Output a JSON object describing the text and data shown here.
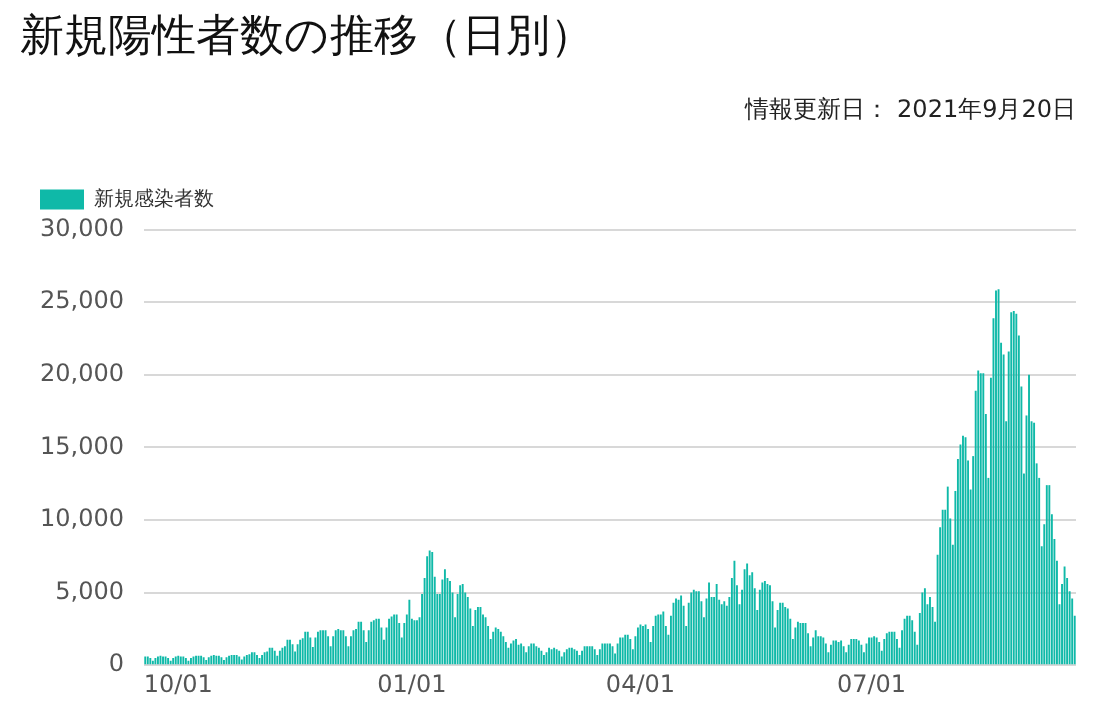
{
  "chart_data": {
    "type": "bar",
    "title": "新規陽性者数の推移（日別）",
    "subtitle": "情報更新日： 2021年9月20日",
    "categories": [
      null,
      null,
      null,
      null,
      null,
      null,
      null,
      null,
      null,
      null,
      null,
      null,
      null,
      "10/01",
      null,
      null,
      null,
      null,
      null,
      null,
      null,
      null,
      null,
      null,
      null,
      null,
      null,
      null,
      null,
      null,
      null,
      null,
      null,
      null,
      null,
      null,
      null,
      null,
      null,
      null,
      null,
      null,
      null,
      null,
      null,
      null,
      null,
      null,
      null,
      null,
      null,
      null,
      null,
      null,
      null,
      null,
      null,
      null,
      null,
      null,
      null,
      null,
      null,
      null,
      null,
      null,
      null,
      null,
      null,
      null,
      null,
      null,
      null,
      null,
      null,
      null,
      null,
      null,
      null,
      null,
      null,
      null,
      null,
      null,
      null,
      null,
      null,
      null,
      null,
      null,
      null,
      null,
      null,
      null,
      null,
      null,
      null,
      null,
      null,
      null,
      null,
      null,
      null,
      null,
      null,
      "01/01",
      null,
      null,
      null,
      null,
      null,
      null,
      null,
      null,
      null,
      null,
      null,
      null,
      null,
      null,
      null,
      null,
      null,
      null,
      null,
      null,
      null,
      null,
      null,
      null,
      null,
      null,
      null,
      null,
      null,
      null,
      null,
      null,
      null,
      null,
      null,
      null,
      null,
      null,
      null,
      null,
      null,
      null,
      null,
      null,
      null,
      null,
      null,
      null,
      null,
      null,
      null,
      null,
      null,
      null,
      null,
      null,
      null,
      null,
      null,
      null,
      null,
      null,
      null,
      null,
      null,
      null,
      null,
      null,
      null,
      null,
      null,
      null,
      null,
      null,
      null,
      null,
      null,
      null,
      null,
      null,
      null,
      null,
      null,
      null,
      null,
      null,
      null,
      null,
      null,
      "04/01",
      null,
      null,
      null,
      null,
      null,
      null,
      null,
      null,
      null,
      null,
      null,
      null,
      null,
      null,
      null,
      null,
      null,
      null,
      null,
      null,
      null,
      null,
      null,
      null,
      null,
      null,
      null,
      null,
      null,
      null,
      null,
      null,
      null,
      null,
      null,
      null,
      null,
      null,
      null,
      null,
      null,
      null,
      null,
      null,
      null,
      null,
      null,
      null,
      null,
      null,
      null,
      null,
      null,
      null,
      null,
      null,
      null,
      null,
      null,
      null,
      null,
      null,
      null,
      null,
      null,
      null,
      null,
      null,
      null,
      null,
      null,
      null,
      null,
      null,
      null,
      null,
      null,
      null,
      null,
      null,
      null,
      null,
      null,
      null,
      null,
      null,
      null,
      null,
      null,
      null,
      "07/01",
      null,
      null,
      null,
      null,
      null,
      null,
      null,
      null,
      null,
      null,
      null,
      null,
      null,
      null,
      null,
      null,
      null,
      null,
      null,
      null,
      null,
      null,
      null,
      null,
      null,
      null,
      null,
      null,
      null,
      null,
      null,
      null,
      null,
      null,
      null,
      null,
      null,
      null,
      null,
      null,
      null,
      null,
      null,
      null,
      null,
      null,
      null,
      null,
      null,
      null,
      null,
      null,
      null,
      null,
      null,
      null,
      null,
      null,
      null,
      null,
      null,
      null,
      null,
      null,
      null,
      null,
      null,
      null,
      null,
      null,
      null,
      null,
      null,
      null,
      null,
      null,
      null,
      null,
      null,
      null
    ],
    "series": [
      {
        "name": "新規感染者数",
        "color": "#0fb9a8",
        "values": [
          600,
          600,
          500,
          300,
          500,
          600,
          650,
          600,
          600,
          500,
          300,
          500,
          600,
          650,
          600,
          600,
          500,
          300,
          500,
          600,
          650,
          650,
          650,
          550,
          350,
          550,
          650,
          700,
          650,
          650,
          550,
          350,
          550,
          650,
          700,
          700,
          700,
          600,
          400,
          600,
          700,
          750,
          900,
          900,
          700,
          500,
          700,
          900,
          950,
          1200,
          1200,
          1000,
          650,
          1000,
          1200,
          1300,
          1750,
          1750,
          1450,
          950,
          1450,
          1750,
          1850,
          2300,
          2300,
          1900,
          1250,
          1900,
          2300,
          2400,
          2400,
          2400,
          2000,
          1300,
          2000,
          2400,
          2500,
          2400,
          2400,
          2000,
          1300,
          2000,
          2400,
          2500,
          3000,
          3000,
          2400,
          1600,
          2400,
          3000,
          3100,
          3200,
          3200,
          2600,
          1750,
          2600,
          3200,
          3350,
          3500,
          3500,
          2900,
          1900,
          2900,
          3500,
          4500,
          3200,
          3100,
          3100,
          3300,
          4900,
          6000,
          7500,
          7900,
          7800,
          6100,
          4900,
          4900,
          5900,
          6600,
          6000,
          5800,
          5000,
          3300,
          4900,
          5500,
          5600,
          5000,
          4700,
          3900,
          2700,
          3800,
          4000,
          4000,
          3500,
          3300,
          2700,
          1800,
          2300,
          2600,
          2500,
          2300,
          2000,
          1600,
          1200,
          1500,
          1700,
          1800,
          1400,
          1500,
          1300,
          900,
          1300,
          1500,
          1500,
          1300,
          1200,
          1000,
          700,
          900,
          1200,
          1100,
          1200,
          1100,
          1000,
          600,
          900,
          1100,
          1200,
          1200,
          1100,
          1000,
          700,
          1000,
          1300,
          1300,
          1300,
          1300,
          1100,
          700,
          1100,
          1500,
          1500,
          1500,
          1500,
          1300,
          800,
          1500,
          1900,
          1900,
          2100,
          2100,
          1800,
          1100,
          2000,
          2600,
          2800,
          2700,
          2800,
          2500,
          1600,
          2700,
          3400,
          3500,
          3500,
          3700,
          2700,
          2100,
          3400,
          4300,
          4600,
          4500,
          4800,
          4100,
          2700,
          4300,
          5000,
          5200,
          5100,
          5100,
          4400,
          3300,
          4600,
          5700,
          4700,
          4700,
          5600,
          4500,
          4200,
          4400,
          4100,
          4700,
          6000,
          7200,
          5500,
          4200,
          5200,
          6600,
          7000,
          6200,
          6400,
          5300,
          3800,
          5200,
          5700,
          5800,
          5600,
          5500,
          4400,
          2600,
          3800,
          4300,
          4300,
          4000,
          3900,
          3200,
          1800,
          2600,
          3000,
          2900,
          2900,
          2900,
          2200,
          1300,
          1900,
          2400,
          2000,
          2000,
          1900,
          1500,
          900,
          1400,
          1700,
          1700,
          1600,
          1700,
          1300,
          900,
          1400,
          1800,
          1800,
          1800,
          1700,
          1400,
          900,
          1500,
          1900,
          1900,
          2000,
          1900,
          1600,
          1000,
          1800,
          2200,
          2300,
          2300,
          2300,
          1800,
          1200,
          2400,
          3200,
          3400,
          3400,
          3100,
          2300,
          1400,
          3600,
          5000,
          5300,
          4200,
          4700,
          4000,
          3000,
          7600,
          9500,
          10700,
          10700,
          12300,
          10100,
          8300,
          12000,
          14200,
          15200,
          15800,
          15700,
          14100,
          12100,
          14400,
          18900,
          20300,
          20100,
          20100,
          17300,
          12900,
          19800,
          23900,
          25800,
          25900,
          22200,
          21400,
          16800,
          21600,
          24300,
          24400,
          24200,
          22700,
          19200,
          13200,
          17200,
          20000,
          16800,
          16700,
          13900,
          12900,
          8200,
          9700,
          12400,
          12400,
          10400,
          8700,
          7200,
          4200,
          5600,
          6800,
          6000,
          5100,
          4600,
          3400
        ]
      }
    ],
    "ylim": [
      0,
      30000
    ],
    "yticks": [
      {
        "value": 0,
        "label": "0"
      },
      {
        "value": 5000,
        "label": "5,000"
      },
      {
        "value": 10000,
        "label": "10,000"
      },
      {
        "value": 15000,
        "label": "15,000"
      },
      {
        "value": 20000,
        "label": "20,000"
      },
      {
        "value": 25000,
        "label": "25,000"
      },
      {
        "value": 30000,
        "label": "30,000"
      }
    ],
    "grid": "y",
    "legend": "top left"
  }
}
